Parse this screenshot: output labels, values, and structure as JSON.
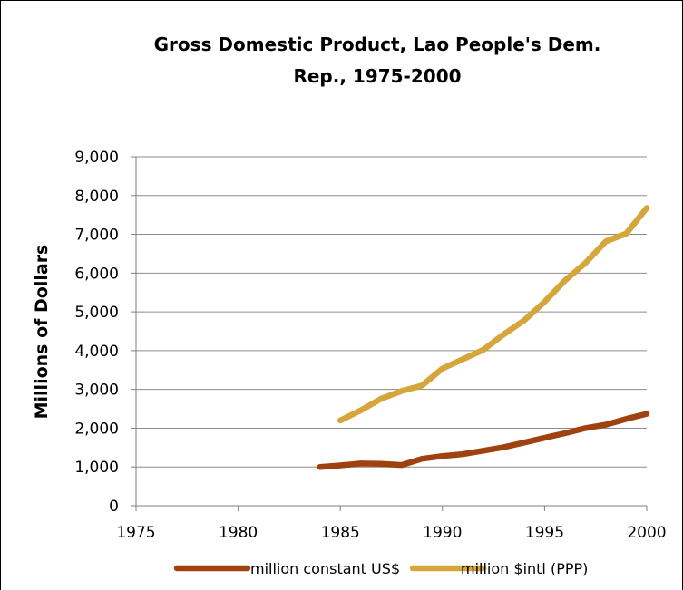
{
  "chart_data": {
    "type": "line",
    "title_lines": [
      "Gross Domestic Product, Lao People's Dem.",
      "Rep., 1975-2000"
    ],
    "xlabel": "",
    "ylabel": "Millions of Dollars",
    "xlim": [
      1975,
      2000
    ],
    "ylim": [
      0,
      9000
    ],
    "x_ticks": [
      "1975",
      "1980",
      "1985",
      "1990",
      "1995",
      "2000"
    ],
    "y_ticks": [
      "0",
      "1,000",
      "2,000",
      "3,000",
      "4,000",
      "5,000",
      "6,000",
      "7,000",
      "8,000",
      "9,000"
    ],
    "grid": true,
    "legend_position": "bottom",
    "series": [
      {
        "name": "million constant US$",
        "color": "#A0420F",
        "points": [
          [
            1984,
            1000
          ],
          [
            1985,
            1040
          ],
          [
            1986,
            1090
          ],
          [
            1987,
            1080
          ],
          [
            1988,
            1050
          ],
          [
            1989,
            1210
          ],
          [
            1990,
            1280
          ],
          [
            1991,
            1330
          ],
          [
            1992,
            1420
          ],
          [
            1993,
            1510
          ],
          [
            1994,
            1630
          ],
          [
            1995,
            1750
          ],
          [
            1996,
            1870
          ],
          [
            1997,
            2000
          ],
          [
            1998,
            2090
          ],
          [
            1999,
            2240
          ],
          [
            2000,
            2370
          ]
        ]
      },
      {
        "name": "million $intl (PPP)",
        "color": "#D4A63B",
        "points": [
          [
            1985,
            2200
          ],
          [
            1986,
            2460
          ],
          [
            1987,
            2760
          ],
          [
            1988,
            2960
          ],
          [
            1989,
            3100
          ],
          [
            1990,
            3540
          ],
          [
            1991,
            3780
          ],
          [
            1992,
            4020
          ],
          [
            1993,
            4420
          ],
          [
            1994,
            4780
          ],
          [
            1995,
            5260
          ],
          [
            1996,
            5810
          ],
          [
            1997,
            6260
          ],
          [
            1998,
            6820
          ],
          [
            1999,
            7020
          ],
          [
            2000,
            7680
          ]
        ]
      }
    ]
  }
}
